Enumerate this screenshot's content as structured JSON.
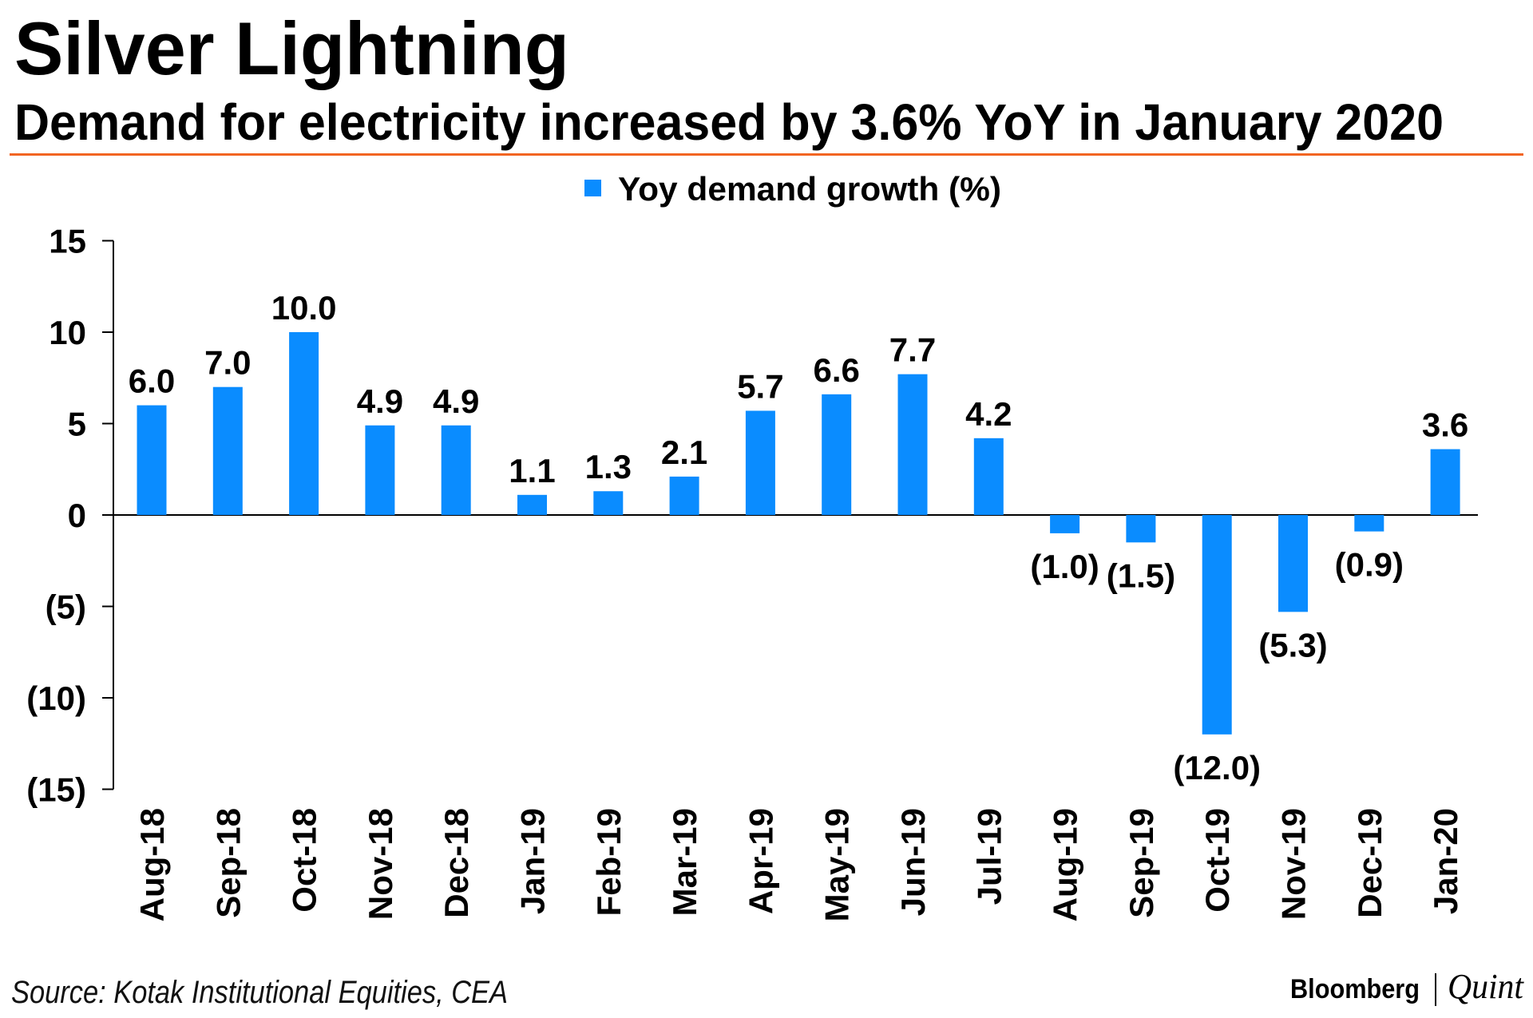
{
  "header": {
    "title": "Silver Lightning",
    "subtitle": "Demand for electricity increased by 3.6% YoY in January 2020"
  },
  "footer": {
    "source": "Source: Kotak Institutional Equities, CEA",
    "logo_left": "Bloomberg",
    "logo_right": "Quint"
  },
  "colors": {
    "bar": "#0a8cff",
    "rule": "#f26522"
  },
  "chart_data": {
    "type": "bar",
    "title": "Silver Lightning",
    "subtitle": "Demand for electricity increased by 3.6% YoY in January 2020",
    "legend": {
      "label": "Yoy demand growth (%)",
      "placement": "top-center"
    },
    "categories": [
      "Aug-18",
      "Sep-18",
      "Oct-18",
      "Nov-18",
      "Dec-18",
      "Jan-19",
      "Feb-19",
      "Mar-19",
      "Apr-19",
      "May-19",
      "Jun-19",
      "Jul-19",
      "Aug-19",
      "Sep-19",
      "Oct-19",
      "Nov-19",
      "Dec-19",
      "Jan-20"
    ],
    "values": [
      6.0,
      7.0,
      10.0,
      4.9,
      4.9,
      1.1,
      1.3,
      2.1,
      5.7,
      6.6,
      7.7,
      4.2,
      -1.0,
      -1.5,
      -12.0,
      -5.3,
      -0.9,
      3.6
    ],
    "data_labels": [
      "6.0",
      "7.0",
      "10.0",
      "4.9",
      "4.9",
      "1.1",
      "1.3",
      "2.1",
      "5.7",
      "6.6",
      "7.7",
      "4.2",
      "(1.0)",
      "(1.5)",
      "(12.0)",
      "(5.3)",
      "(0.9)",
      "3.6"
    ],
    "yticks": [
      15,
      10,
      5,
      0,
      -5,
      -10,
      -15
    ],
    "ytick_labels": [
      "15",
      "10",
      "5",
      "0",
      "(5)",
      "(10)",
      "(15)"
    ],
    "ylim": [
      -15,
      15
    ],
    "xlabel": "",
    "ylabel": "",
    "grid": false
  }
}
